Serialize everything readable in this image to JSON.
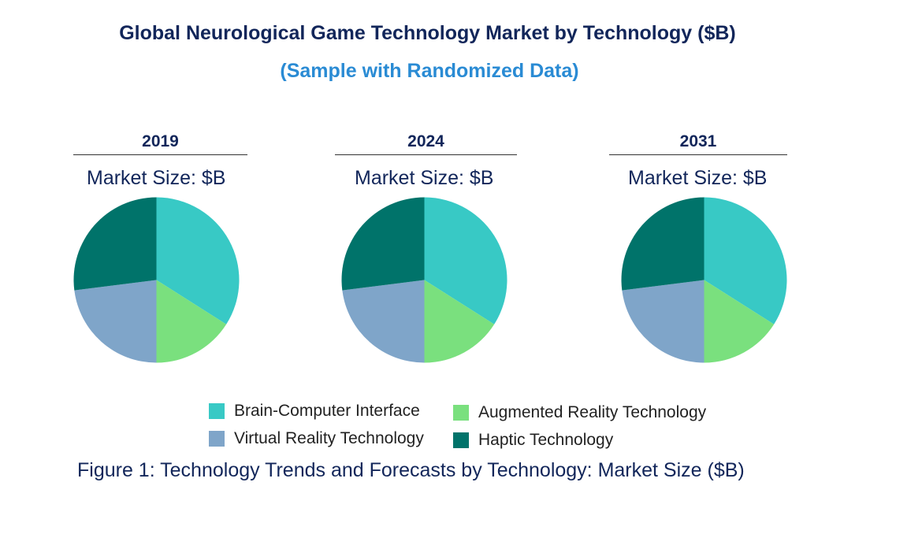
{
  "chart_data": [
    {
      "type": "pie",
      "title": "Global Neurological Game Technology Market by Technology ($B)",
      "subtitle": "(Sample with Randomized Data)",
      "panel_title": "2019",
      "market_size_label": "Market Size: $B",
      "categories": [
        "Brain-Computer Interface",
        "Augmented Reality Technology",
        "Virtual Reality Technology",
        "Haptic Technology"
      ],
      "values": [
        34,
        16,
        23,
        27
      ]
    },
    {
      "type": "pie",
      "panel_title": "2024",
      "market_size_label": "Market Size: $B",
      "categories": [
        "Brain-Computer Interface",
        "Augmented Reality Technology",
        "Virtual Reality Technology",
        "Haptic Technology"
      ],
      "values": [
        34,
        16,
        23,
        27
      ]
    },
    {
      "type": "pie",
      "panel_title": "2031",
      "market_size_label": "Market Size: $B",
      "categories": [
        "Brain-Computer Interface",
        "Augmented Reality Technology",
        "Virtual Reality Technology",
        "Haptic Technology"
      ],
      "values": [
        34,
        16,
        23,
        27
      ]
    }
  ],
  "colors": {
    "title": "#12265a",
    "subtitle": "#2a8bd4",
    "series": [
      "#38c9c5",
      "#7ae07e",
      "#7fa5c9",
      "#00736a"
    ]
  },
  "legend": [
    {
      "label": "Brain-Computer Interface"
    },
    {
      "label": "Augmented Reality Technology"
    },
    {
      "label": "Virtual Reality Technology"
    },
    {
      "label": "Haptic Technology"
    }
  ],
  "caption": "Figure 1: Technology Trends and Forecasts by Technology: Market Size ($B)"
}
